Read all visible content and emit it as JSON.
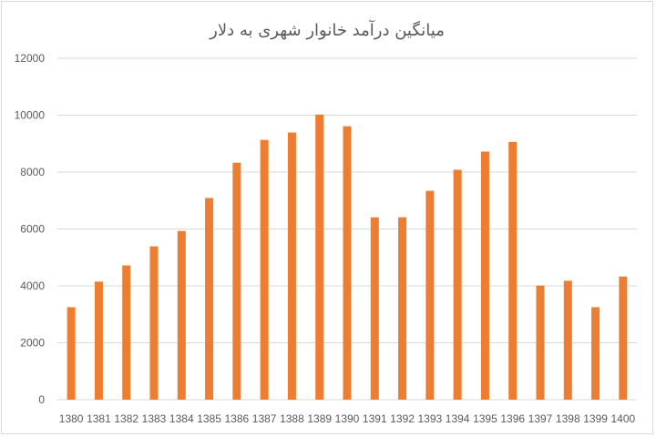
{
  "chart_data": {
    "type": "bar",
    "title": "میانگین درآمد خانوار شهری به دلار",
    "categories": [
      "1380",
      "1381",
      "1382",
      "1383",
      "1384",
      "1385",
      "1386",
      "1387",
      "1388",
      "1389",
      "1390",
      "1391",
      "1392",
      "1393",
      "1394",
      "1395",
      "1396",
      "1397",
      "1398",
      "1399",
      "1400"
    ],
    "values": [
      3250,
      4150,
      4720,
      5390,
      5930,
      7090,
      8330,
      9130,
      9390,
      10020,
      9610,
      6410,
      6410,
      7340,
      8080,
      8720,
      9060,
      4010,
      4180,
      3250,
      4330
    ],
    "xlabel": "",
    "ylabel": "",
    "ylim": [
      0,
      12000
    ],
    "yticks": [
      0,
      2000,
      4000,
      6000,
      8000,
      10000,
      12000
    ],
    "grid": true,
    "legend": "none",
    "bar_color": "#ed7d31"
  }
}
